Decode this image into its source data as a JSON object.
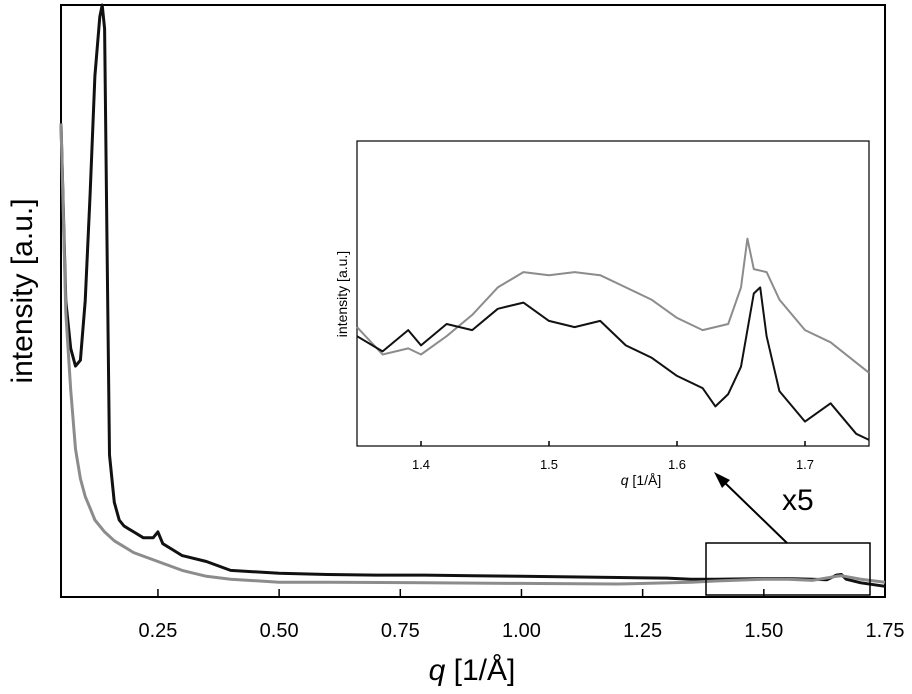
{
  "chart_data": [
    {
      "type": "line",
      "xlabel_italic": "q",
      "xlabel_rest": " [1/Å]",
      "ylabel": "intensity [a.u.]",
      "xlim": [
        0.05,
        1.75
      ],
      "ylim": [
        0,
        1.0
      ],
      "x_ticks": [
        0.25,
        0.5,
        0.75,
        1.0,
        1.25,
        1.5,
        1.75
      ],
      "x_tick_labels": [
        "0.25",
        "0.50",
        "0.75",
        "1.00",
        "1.25",
        "1.50",
        "1.75"
      ],
      "y_tick_labels": [],
      "annotation": "x5",
      "colors": {
        "black_series": "#111111",
        "gray_series": "#8c8c8c"
      },
      "series": [
        {
          "color": "#111111",
          "x": [
            0.05,
            0.06,
            0.07,
            0.08,
            0.09,
            0.1,
            0.11,
            0.12,
            0.13,
            0.135,
            0.14,
            0.145,
            0.15,
            0.16,
            0.17,
            0.18,
            0.2,
            0.22,
            0.24,
            0.25,
            0.26,
            0.28,
            0.3,
            0.35,
            0.4,
            0.5,
            0.6,
            0.7,
            0.8,
            0.9,
            1.0,
            1.1,
            1.2,
            1.3,
            1.35,
            1.4,
            1.5,
            1.55,
            1.6,
            1.63,
            1.65,
            1.66,
            1.67,
            1.7,
            1.75
          ],
          "y": [
            0.8,
            0.5,
            0.42,
            0.39,
            0.4,
            0.5,
            0.68,
            0.88,
            0.98,
            1.0,
            0.96,
            0.6,
            0.24,
            0.16,
            0.13,
            0.12,
            0.11,
            0.1,
            0.1,
            0.11,
            0.09,
            0.08,
            0.07,
            0.06,
            0.045,
            0.04,
            0.038,
            0.037,
            0.037,
            0.036,
            0.035,
            0.034,
            0.033,
            0.032,
            0.03,
            0.03,
            0.031,
            0.031,
            0.03,
            0.029,
            0.037,
            0.038,
            0.03,
            0.024,
            0.018
          ]
        },
        {
          "color": "#8c8c8c",
          "x": [
            0.05,
            0.06,
            0.07,
            0.08,
            0.09,
            0.1,
            0.11,
            0.12,
            0.14,
            0.16,
            0.18,
            0.2,
            0.25,
            0.3,
            0.35,
            0.4,
            0.5,
            0.6,
            0.8,
            1.0,
            1.2,
            1.35,
            1.4,
            1.5,
            1.55,
            1.6,
            1.65,
            1.66,
            1.7,
            1.75
          ],
          "y": [
            0.8,
            0.48,
            0.35,
            0.25,
            0.2,
            0.17,
            0.15,
            0.13,
            0.11,
            0.095,
            0.085,
            0.075,
            0.06,
            0.045,
            0.035,
            0.03,
            0.025,
            0.025,
            0.024,
            0.023,
            0.022,
            0.025,
            0.027,
            0.03,
            0.03,
            0.028,
            0.035,
            0.036,
            0.03,
            0.025
          ]
        }
      ]
    },
    {
      "type": "line",
      "xlabel_italic": "q",
      "xlabel_rest": " [1/Å]",
      "ylabel": "intensity [a.u.]",
      "xlim": [
        1.35,
        1.75
      ],
      "ylim": [
        0,
        1.0
      ],
      "x_ticks": [
        1.4,
        1.5,
        1.6,
        1.7
      ],
      "x_tick_labels": [
        "1.4",
        "1.5",
        "1.6",
        "1.7"
      ],
      "y_tick_labels": [],
      "series": [
        {
          "color": "#8c8c8c",
          "x": [
            1.35,
            1.37,
            1.39,
            1.4,
            1.42,
            1.44,
            1.46,
            1.48,
            1.5,
            1.52,
            1.54,
            1.56,
            1.58,
            1.6,
            1.62,
            1.64,
            1.65,
            1.655,
            1.66,
            1.67,
            1.68,
            1.7,
            1.72,
            1.75
          ],
          "y": [
            0.39,
            0.3,
            0.32,
            0.3,
            0.36,
            0.43,
            0.52,
            0.57,
            0.56,
            0.57,
            0.56,
            0.52,
            0.48,
            0.42,
            0.38,
            0.4,
            0.52,
            0.68,
            0.58,
            0.57,
            0.48,
            0.38,
            0.34,
            0.24
          ]
        },
        {
          "color": "#111111",
          "x": [
            1.35,
            1.37,
            1.39,
            1.4,
            1.42,
            1.44,
            1.46,
            1.48,
            1.5,
            1.52,
            1.54,
            1.56,
            1.58,
            1.6,
            1.62,
            1.63,
            1.64,
            1.65,
            1.66,
            1.665,
            1.67,
            1.68,
            1.7,
            1.72,
            1.74,
            1.75
          ],
          "y": [
            0.36,
            0.31,
            0.38,
            0.33,
            0.4,
            0.38,
            0.45,
            0.47,
            0.41,
            0.39,
            0.41,
            0.33,
            0.29,
            0.23,
            0.19,
            0.13,
            0.17,
            0.26,
            0.5,
            0.52,
            0.36,
            0.18,
            0.08,
            0.14,
            0.04,
            0.02
          ]
        }
      ]
    }
  ]
}
